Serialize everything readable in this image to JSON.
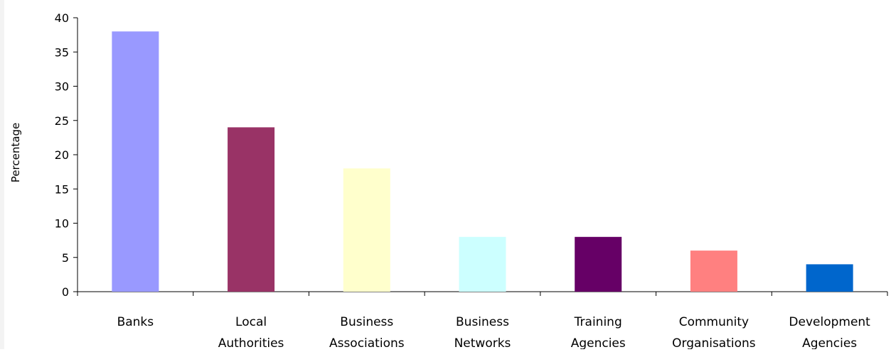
{
  "chart_data": {
    "type": "bar",
    "title": "",
    "xlabel": "",
    "ylabel": "Percentage",
    "ylim": [
      0,
      40
    ],
    "yticks": [
      0,
      5,
      10,
      15,
      20,
      25,
      30,
      35,
      40
    ],
    "grid": false,
    "legend": "none",
    "categories": [
      [
        "Banks"
      ],
      [
        "Local",
        "Authorities"
      ],
      [
        "Business",
        "Associations"
      ],
      [
        "Business",
        "Networks"
      ],
      [
        "Training",
        "Agencies"
      ],
      [
        "Community",
        "Organisations"
      ],
      [
        "Development",
        "Agencies"
      ]
    ],
    "values": [
      38,
      24,
      18,
      8,
      8,
      6,
      4
    ],
    "colors": [
      "#9999ff",
      "#993366",
      "#ffffcc",
      "#ccffff",
      "#660066",
      "#ff8080",
      "#0066cc"
    ]
  }
}
